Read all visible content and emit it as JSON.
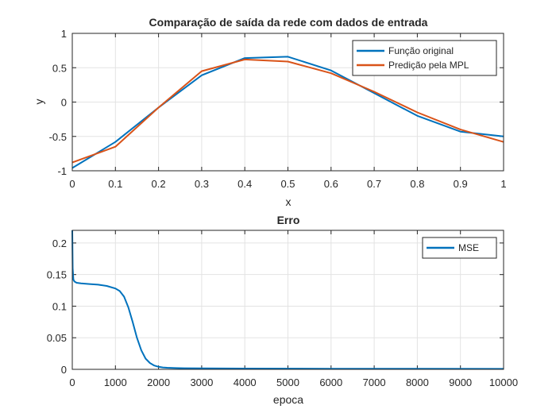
{
  "chart_data": [
    {
      "type": "line",
      "title": "Comparação de saída da rede com dados de entrada",
      "xlabel": "x",
      "ylabel": "y",
      "xlim": [
        0,
        1
      ],
      "ylim": [
        -1,
        1
      ],
      "xticks": [
        "0",
        "0.1",
        "0.2",
        "0.3",
        "0.4",
        "0.5",
        "0.6",
        "0.7",
        "0.8",
        "0.9",
        "1"
      ],
      "yticks": [
        "-1",
        "-0.5",
        "0",
        "0.5",
        "1"
      ],
      "grid": true,
      "legend_position": "top-right",
      "x": [
        0,
        0.1,
        0.2,
        0.3,
        0.4,
        0.5,
        0.6,
        0.7,
        0.8,
        0.9,
        1.0
      ],
      "series": [
        {
          "name": "Função original",
          "color": "#0072BD",
          "values": [
            -0.96,
            -0.58,
            -0.08,
            0.39,
            0.64,
            0.66,
            0.46,
            0.13,
            -0.2,
            -0.43,
            -0.5
          ]
        },
        {
          "name": "Predição pela MPL",
          "color": "#D95319",
          "values": [
            -0.88,
            -0.65,
            -0.08,
            0.45,
            0.62,
            0.59,
            0.42,
            0.15,
            -0.15,
            -0.4,
            -0.58
          ]
        }
      ]
    },
    {
      "type": "line",
      "title": "Erro",
      "xlabel": "epoca",
      "ylabel": "",
      "xlim": [
        0,
        10000
      ],
      "ylim": [
        0,
        0.22
      ],
      "xticks": [
        "0",
        "1000",
        "2000",
        "3000",
        "4000",
        "5000",
        "6000",
        "7000",
        "8000",
        "9000",
        "10000"
      ],
      "yticks": [
        "0",
        "0.05",
        "0.1",
        "0.15",
        "0.2"
      ],
      "grid": true,
      "legend_position": "top-right",
      "series": [
        {
          "name": "MSE",
          "color": "#0072BD",
          "x": [
            0,
            10,
            25,
            50,
            100,
            200,
            400,
            600,
            800,
            1000,
            1100,
            1200,
            1300,
            1400,
            1500,
            1600,
            1700,
            1800,
            1900,
            2000,
            2100,
            2200,
            2400,
            2600,
            3000,
            4000,
            6000,
            8000,
            10000
          ],
          "values": [
            0.22,
            0.16,
            0.142,
            0.139,
            0.137,
            0.136,
            0.135,
            0.134,
            0.132,
            0.128,
            0.124,
            0.115,
            0.098,
            0.075,
            0.05,
            0.03,
            0.017,
            0.01,
            0.006,
            0.004,
            0.003,
            0.0025,
            0.002,
            0.0018,
            0.0015,
            0.0012,
            0.001,
            0.0009,
            0.0008
          ]
        }
      ]
    }
  ]
}
